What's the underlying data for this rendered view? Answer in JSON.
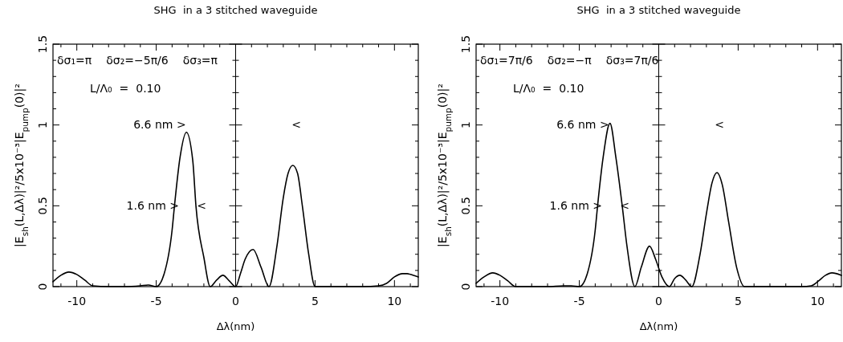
{
  "chart_data": [
    {
      "type": "line",
      "title": "SHG  in a 3 stitched waveguide",
      "xlabel": "Δλ(nm)",
      "ylabel": "|E$_{sh}$(L,Δλ)|²/5x10⁻³|E$_{pump}$(0)|²",
      "xlim": [
        -11.5,
        11.5
      ],
      "ylim": [
        0,
        1.5
      ],
      "xticks": [
        -10,
        -5,
        0,
        5,
        10,
        {
          "value": -11,
          "label": null
        },
        {
          "value": -9,
          "label": null
        },
        {
          "value": -8,
          "label": null
        },
        {
          "value": -7,
          "label": null
        },
        {
          "value": -6,
          "label": null
        },
        {
          "value": -4,
          "label": null
        },
        {
          "value": -3,
          "label": null
        },
        {
          "value": -2,
          "label": null
        },
        {
          "value": -1,
          "label": null
        },
        {
          "value": 1,
          "label": null
        },
        {
          "value": 2,
          "label": null
        },
        {
          "value": 3,
          "label": null
        },
        {
          "value": 4,
          "label": null
        },
        {
          "value": 6,
          "label": null
        },
        {
          "value": 7,
          "label": null
        },
        {
          "value": 8,
          "label": null
        },
        {
          "value": 9,
          "label": null
        },
        {
          "value": 11,
          "label": null
        }
      ],
      "yticks": [
        0,
        0.5,
        1,
        1.5,
        {
          "value": 0.1,
          "label": null
        },
        {
          "value": 0.2,
          "label": null
        },
        {
          "value": 0.3,
          "label": null
        },
        {
          "value": 0.4,
          "label": null
        },
        {
          "value": 0.6,
          "label": null
        },
        {
          "value": 0.7,
          "label": null
        },
        {
          "value": 0.8,
          "label": null
        },
        {
          "value": 0.9,
          "label": null
        },
        {
          "value": 1.1,
          "label": null
        },
        {
          "value": 1.2,
          "label": null
        },
        {
          "value": 1.3,
          "label": null
        },
        {
          "value": 1.4,
          "label": null
        }
      ],
      "grid": false,
      "marker": "none",
      "line_style": "solid",
      "ref_lines": [
        {
          "axis": "x",
          "value": 0,
          "color": "#000000"
        }
      ],
      "series": [
        {
          "color": "#000000",
          "x": [
            -11.5,
            -11,
            -10.5,
            -10,
            -9.5,
            -9,
            -8,
            -7,
            -6,
            -5.5,
            -5,
            -4.5,
            -4,
            -3.85,
            -3.5,
            -3.1,
            -2.7,
            -2.5,
            -2,
            -1.6,
            -1.2,
            -0.8,
            -0.4,
            0,
            0.3,
            0.6,
            1.1,
            1.6,
            2.1,
            2.6,
            3.0,
            3.3,
            3.6,
            3.9,
            4.2,
            4.6,
            5.0,
            6,
            7,
            8,
            9,
            9.5,
            10,
            10.5,
            10.8,
            11.2,
            11.5
          ],
          "values": [
            0.03,
            0.07,
            0.09,
            0.075,
            0.04,
            0.005,
            0,
            0,
            0.005,
            0.01,
            0,
            0.08,
            0.35,
            0.5,
            0.8,
            0.955,
            0.78,
            0.5,
            0.18,
            0,
            0.04,
            0.07,
            0.035,
            0,
            0.08,
            0.17,
            0.23,
            0.12,
            0,
            0.25,
            0.55,
            0.7,
            0.75,
            0.7,
            0.5,
            0.2,
            0,
            0,
            0,
            0,
            0.005,
            0.02,
            0.06,
            0.08,
            0.08,
            0.07,
            0.06
          ]
        }
      ],
      "annotations": [
        "δσ₁=π",
        "δσ₂=−5π/6",
        "δσ₃=π",
        "L/Λ₀  =  0.10",
        "6.6 nm >",
        "<",
        "1.6 nm >",
        "<"
      ]
    },
    {
      "type": "line",
      "title": "SHG  in a 3 stitched waveguide",
      "xlabel": "Δλ(nm)",
      "ylabel": "|E$_{sh}$(L,Δλ)|²/5x10⁻³|E$_{pump}$(0)|²",
      "xlim": [
        -11.5,
        11.5
      ],
      "ylim": [
        0,
        1.5
      ],
      "xticks": [
        -10,
        -5,
        0,
        5,
        10,
        {
          "value": -11,
          "label": null
        },
        {
          "value": -9,
          "label": null
        },
        {
          "value": -8,
          "label": null
        },
        {
          "value": -7,
          "label": null
        },
        {
          "value": -6,
          "label": null
        },
        {
          "value": -4,
          "label": null
        },
        {
          "value": -3,
          "label": null
        },
        {
          "value": -2,
          "label": null
        },
        {
          "value": -1,
          "label": null
        },
        {
          "value": 1,
          "label": null
        },
        {
          "value": 2,
          "label": null
        },
        {
          "value": 3,
          "label": null
        },
        {
          "value": 4,
          "label": null
        },
        {
          "value": 6,
          "label": null
        },
        {
          "value": 7,
          "label": null
        },
        {
          "value": 8,
          "label": null
        },
        {
          "value": 9,
          "label": null
        },
        {
          "value": 11,
          "label": null
        }
      ],
      "yticks": [
        0,
        0.5,
        1,
        1.5,
        {
          "value": 0.1,
          "label": null
        },
        {
          "value": 0.2,
          "label": null
        },
        {
          "value": 0.3,
          "label": null
        },
        {
          "value": 0.4,
          "label": null
        },
        {
          "value": 0.6,
          "label": null
        },
        {
          "value": 0.7,
          "label": null
        },
        {
          "value": 0.8,
          "label": null
        },
        {
          "value": 0.9,
          "label": null
        },
        {
          "value": 1.1,
          "label": null
        },
        {
          "value": 1.2,
          "label": null
        },
        {
          "value": 1.3,
          "label": null
        },
        {
          "value": 1.4,
          "label": null
        }
      ],
      "grid": false,
      "marker": "none",
      "line_style": "solid",
      "ref_lines": [
        {
          "axis": "x",
          "value": 0,
          "color": "#000000"
        }
      ],
      "series": [
        {
          "color": "#000000",
          "x": [
            -11.5,
            -11,
            -10.45,
            -10,
            -9.5,
            -9,
            -8,
            -7,
            -6,
            -5.5,
            -5,
            -4.5,
            -4,
            -3.85,
            -3.5,
            -3.07,
            -2.7,
            -2.3,
            -2,
            -1.5,
            -1.1,
            -0.58,
            -0.2,
            0.2,
            0.67,
            1.0,
            1.33,
            1.7,
            2.08,
            2.6,
            3.0,
            3.35,
            3.67,
            4.0,
            4.4,
            4.9,
            5.4,
            6,
            7,
            8,
            9,
            9.6,
            10,
            10.5,
            10.9,
            11.2,
            11.5
          ],
          "values": [
            0.02,
            0.06,
            0.085,
            0.07,
            0.035,
            0,
            0,
            0,
            0.005,
            0.005,
            0,
            0.08,
            0.35,
            0.5,
            0.8,
            1.01,
            0.8,
            0.5,
            0.25,
            0,
            0.12,
            0.25,
            0.17,
            0.06,
            0,
            0.05,
            0.07,
            0.04,
            0,
            0.2,
            0.45,
            0.64,
            0.705,
            0.63,
            0.4,
            0.12,
            0,
            0,
            0,
            0,
            0,
            0.005,
            0.03,
            0.07,
            0.085,
            0.08,
            0.07
          ]
        }
      ],
      "annotations": [
        "δσ₁=7π/6",
        "δσ₂=−π",
        "δσ₃=7π/6",
        "L/Λ₀  =  0.10",
        "6.6 nm >",
        "<",
        "1.6 nm >",
        "<"
      ]
    }
  ]
}
